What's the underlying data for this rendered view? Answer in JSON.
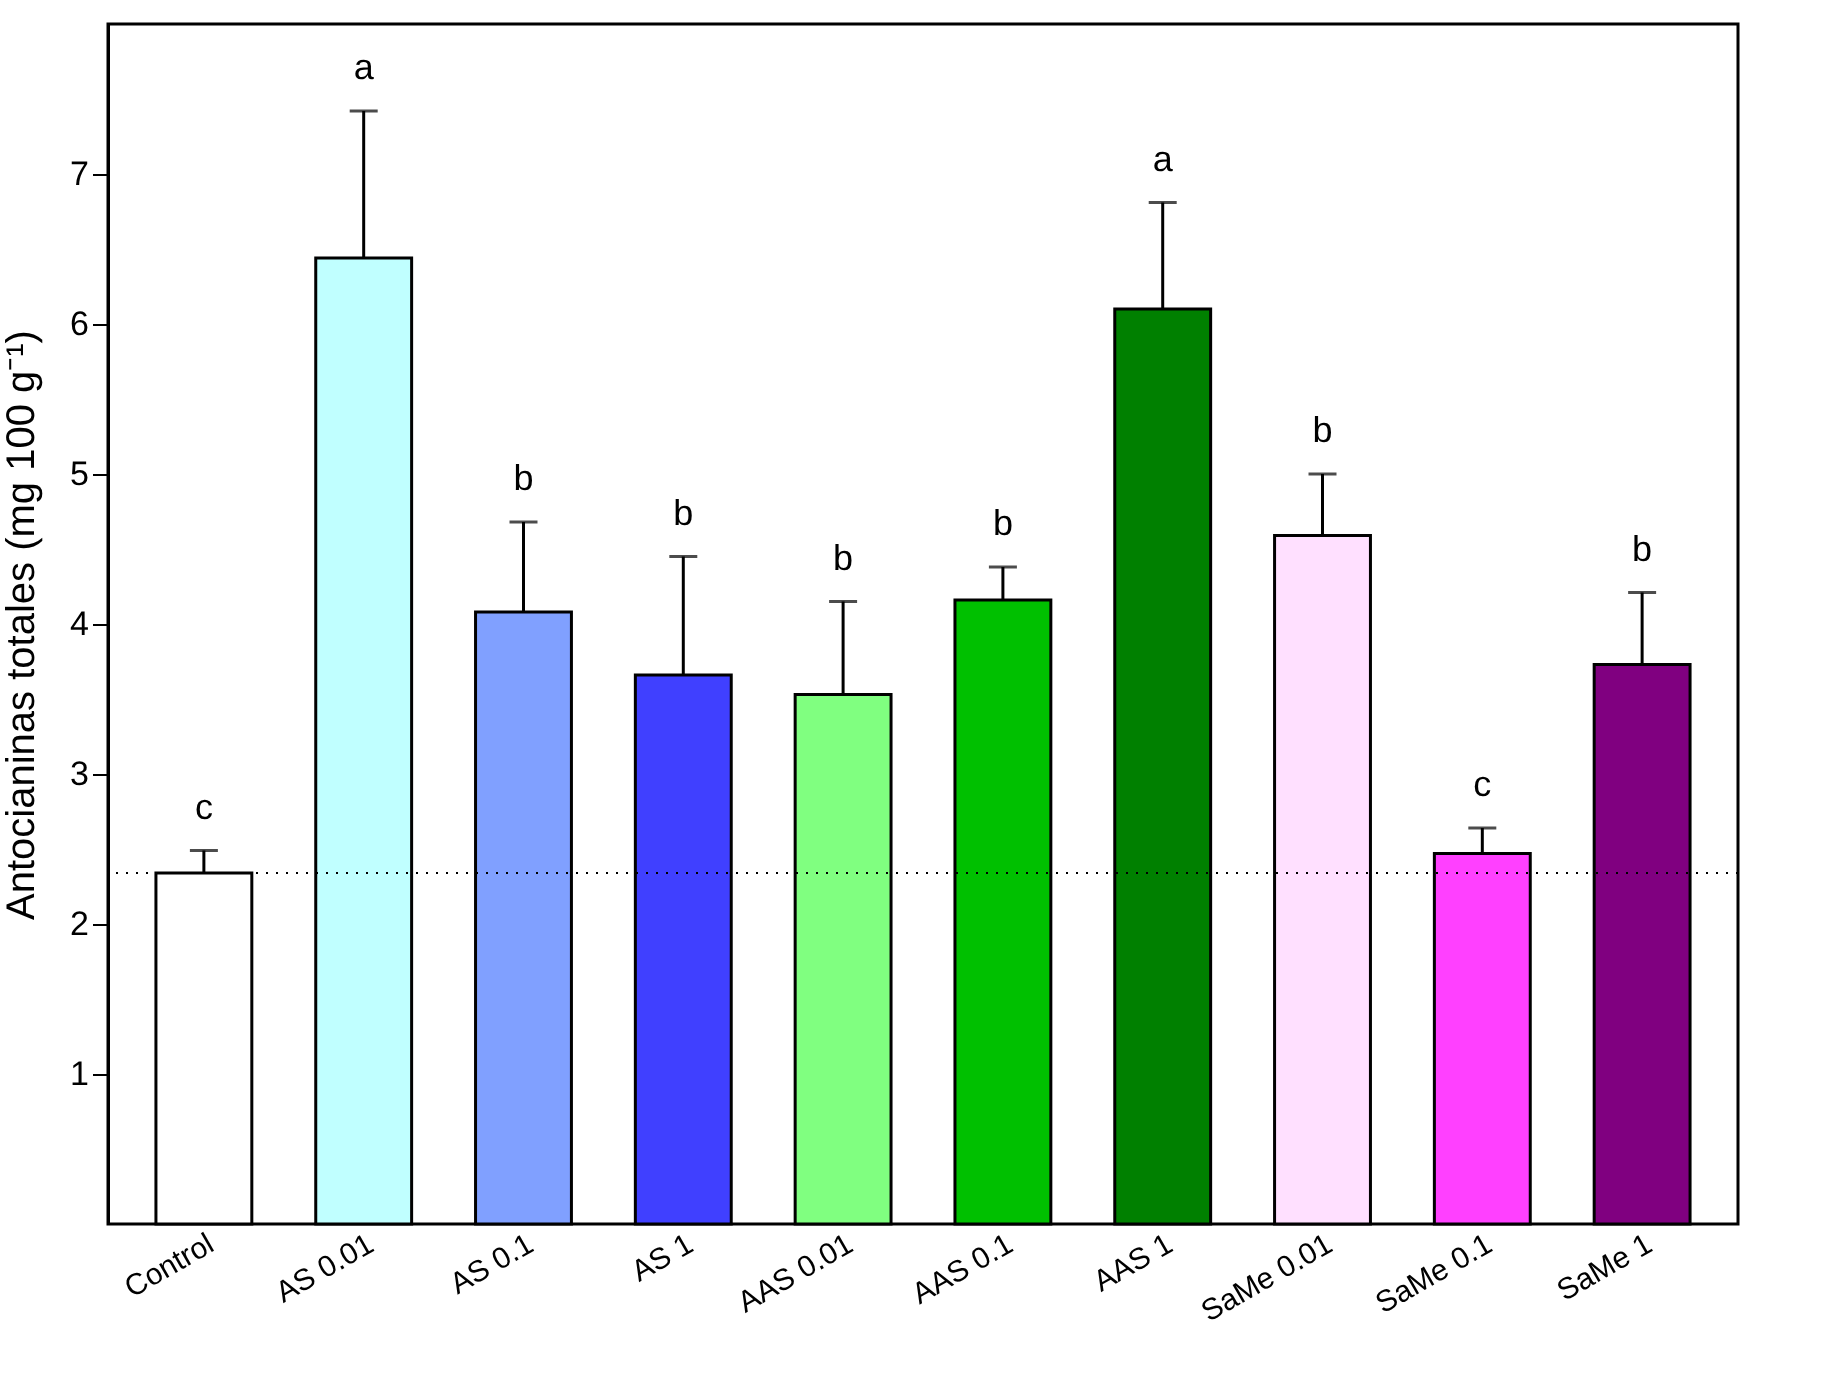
{
  "chart_data": {
    "type": "bar",
    "ylabel": "Antocianinas totales (mg 100 g⁻¹)",
    "categories": [
      "Control",
      "AS 0.01",
      "AS 0.1",
      "AS 1",
      "AAS 0.01",
      "AAS 0.1",
      "AAS 1",
      "SaMe 0.01",
      "SaMe 0.1",
      "SaMe 1"
    ],
    "values": [
      2.34,
      6.44,
      4.08,
      3.66,
      3.53,
      4.16,
      6.1,
      4.59,
      2.47,
      3.73
    ],
    "colors": [
      "#ffffff",
      "#c0ffff",
      "#80a0ff",
      "#4040ff",
      "#80ff80",
      "#00c000",
      "#008000",
      "#ffe0ff",
      "#ff40ff",
      "#800080"
    ],
    "errors": [
      [
        2.34,
        2.49
      ],
      [
        6.44,
        7.42
      ],
      [
        4.08,
        4.68
      ],
      [
        3.66,
        4.45
      ],
      [
        3.53,
        4.15
      ],
      [
        4.16,
        4.38
      ],
      [
        6.1,
        6.81
      ],
      [
        4.59,
        5.0
      ],
      [
        2.47,
        2.64
      ],
      [
        3.73,
        4.21
      ]
    ],
    "ylim": [
      0,
      8
    ],
    "yticks": [
      1,
      2,
      3,
      4,
      5,
      6,
      7
    ],
    "ref_lines": [
      {
        "axis": "y",
        "value": 2.34,
        "line_style": "dotted"
      }
    ],
    "annotations": [
      {
        "text": "c",
        "x": "Control",
        "y": 2.49
      },
      {
        "text": "a",
        "x": "AS 0.01",
        "y": 7.42
      },
      {
        "text": "b",
        "x": "AS 0.1",
        "y": 4.68
      },
      {
        "text": "b",
        "x": "AS 1",
        "y": 4.45
      },
      {
        "text": "b",
        "x": "AAS 0.01",
        "y": 4.15
      },
      {
        "text": "b",
        "x": "AAS 0.1",
        "y": 4.38
      },
      {
        "text": "a",
        "x": "AAS 1",
        "y": 6.81
      },
      {
        "text": "b",
        "x": "SaMe 0.01",
        "y": 5.0
      },
      {
        "text": "c",
        "x": "SaMe 0.1",
        "y": 2.64
      },
      {
        "text": "b",
        "x": "SaMe 1",
        "y": 4.21
      }
    ],
    "grid": false
  }
}
